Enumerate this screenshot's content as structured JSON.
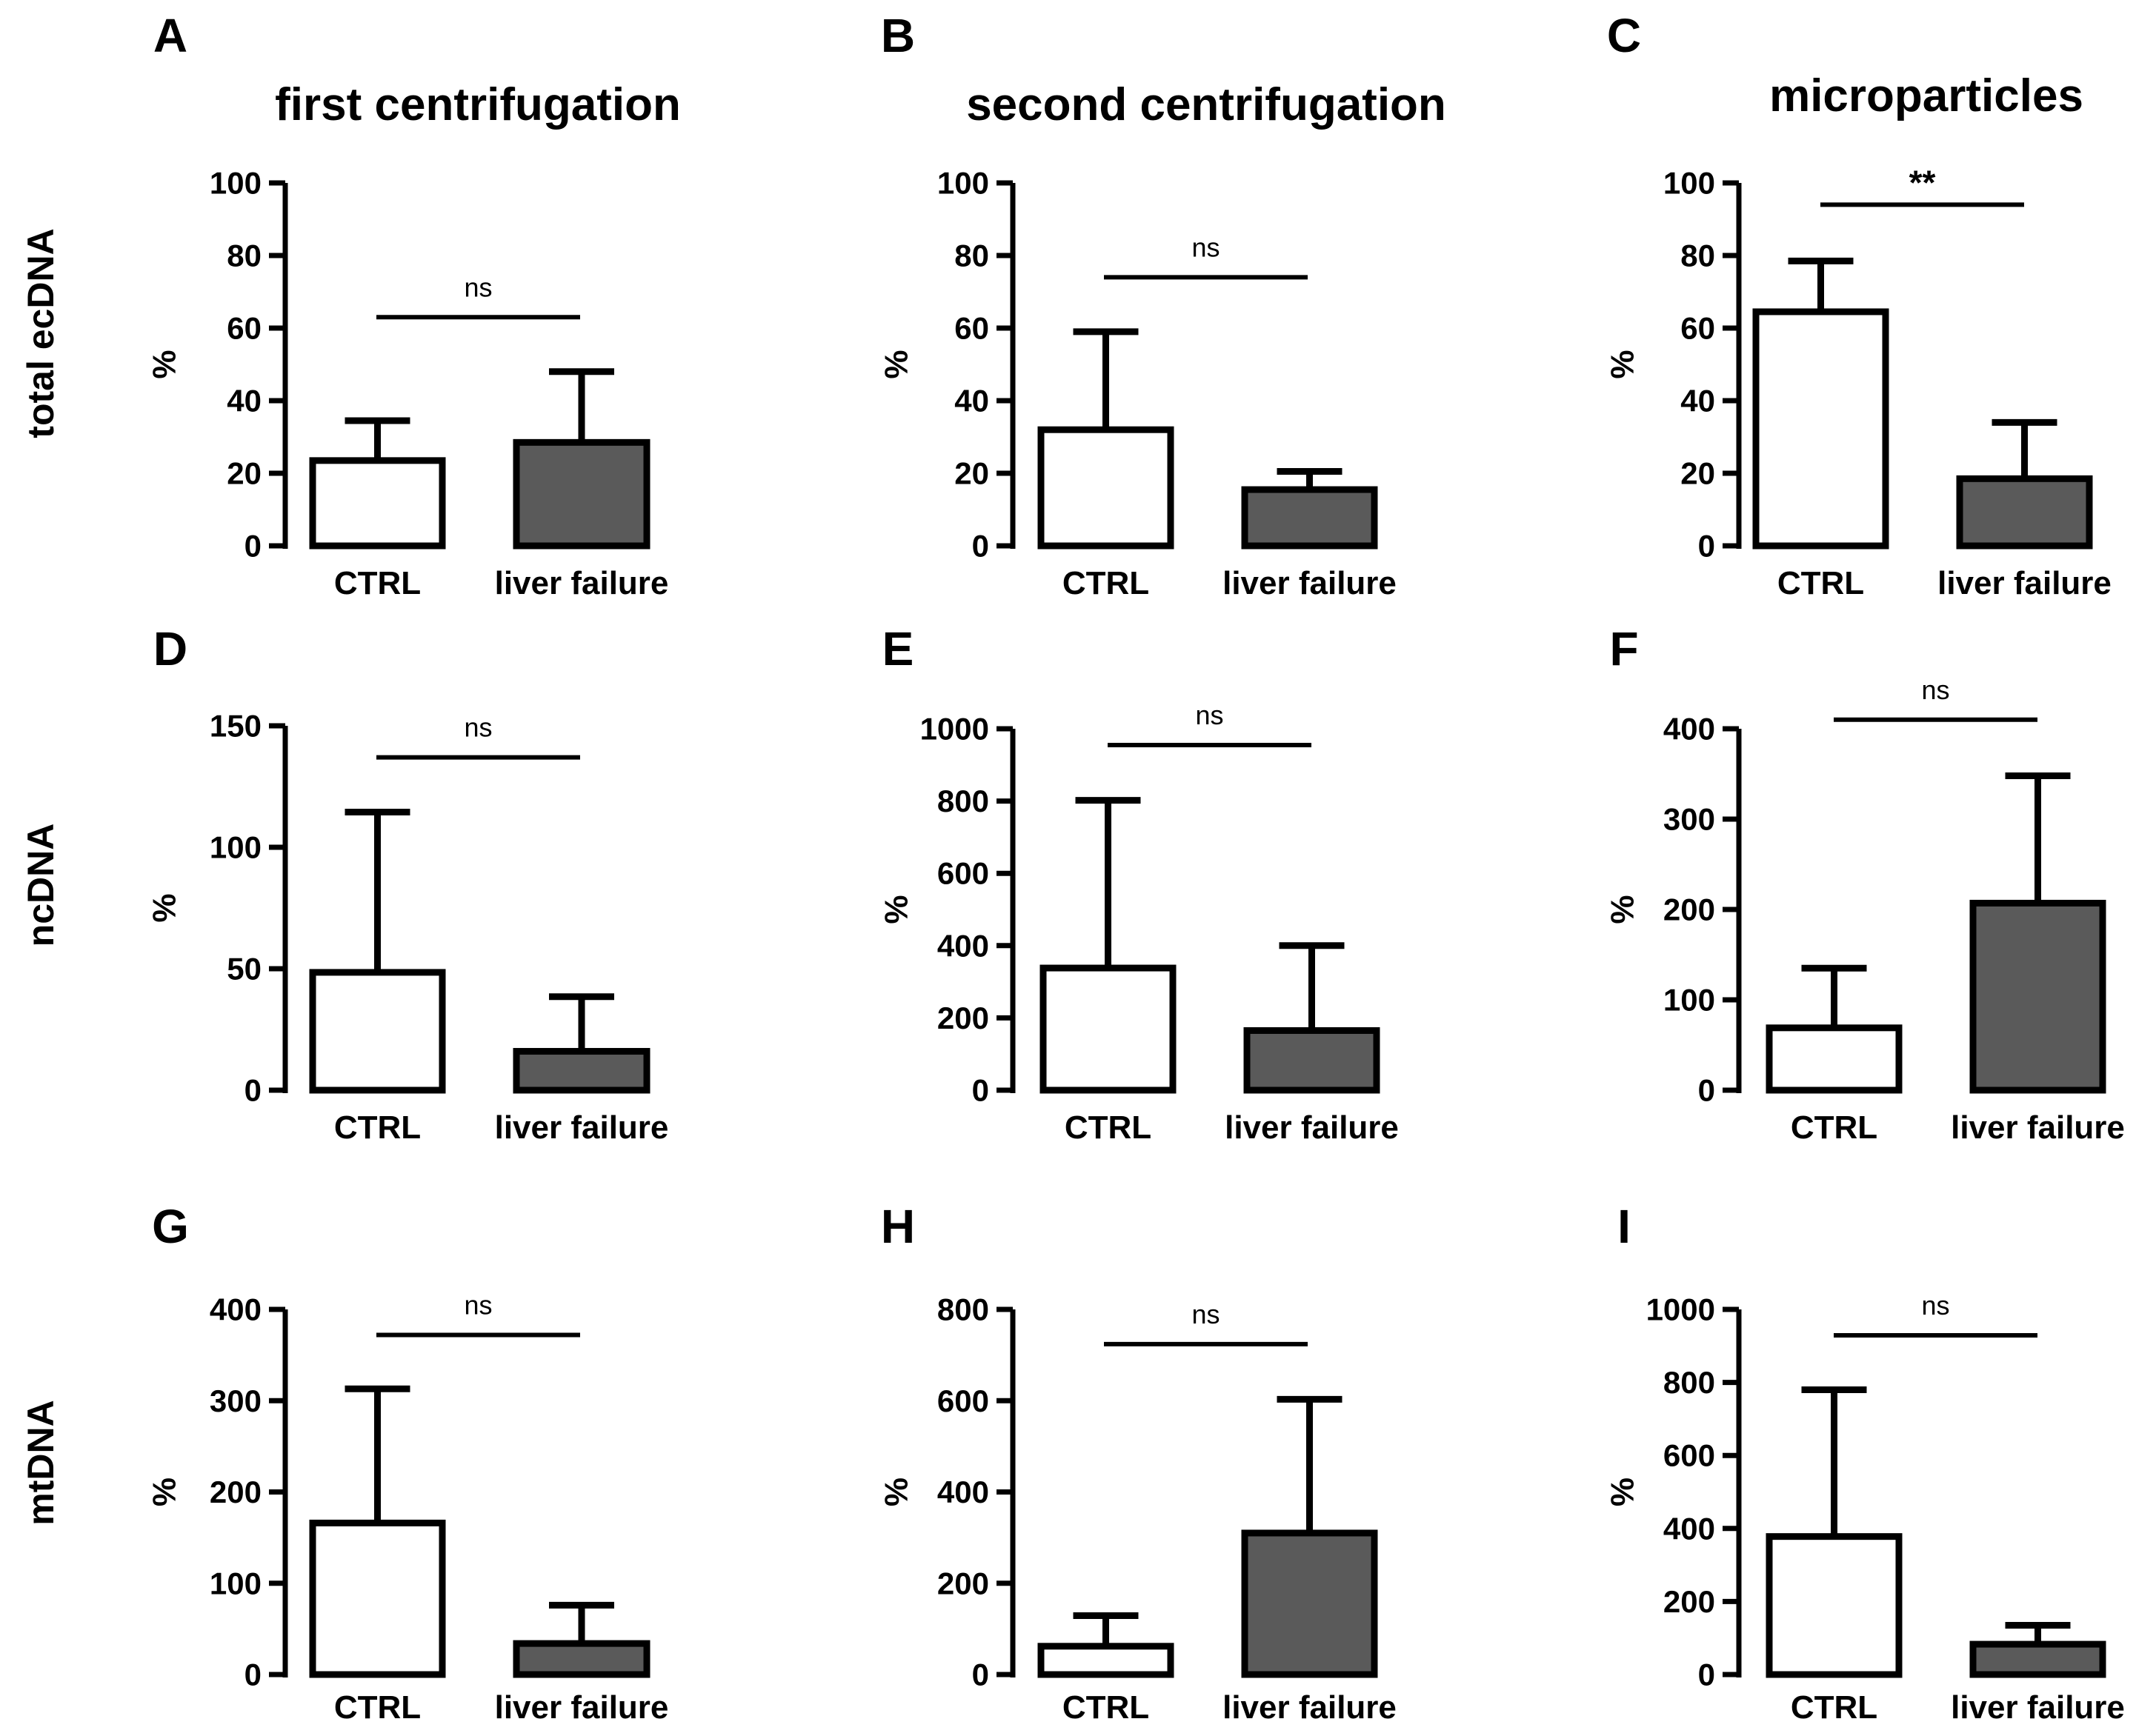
{
  "column_titles": [
    "first centrifugation",
    "second centrifugation",
    "microparticles"
  ],
  "row_titles": [
    "total ecDNA",
    "ncDNA",
    "mtDNA"
  ],
  "colors": {
    "ctrl_fill": "#ffffff",
    "liver_failure_fill": "#5a5a5a",
    "stroke": "#000000"
  },
  "chart_data": [
    {
      "panel": "A",
      "type": "bar",
      "categories": [
        "CTRL",
        "liver failure"
      ],
      "values": [
        23.5,
        28.5
      ],
      "error_upper": [
        34.5,
        48
      ],
      "ylabel": "%",
      "ylim": [
        0,
        100
      ],
      "yticks": [
        0,
        20,
        40,
        60,
        80,
        100
      ],
      "significance": "ns",
      "sig_y": 63
    },
    {
      "panel": "B",
      "type": "bar",
      "categories": [
        "CTRL",
        "liver failure"
      ],
      "values": [
        32,
        15.5
      ],
      "error_upper": [
        59,
        20.5
      ],
      "ylabel": "%",
      "ylim": [
        0,
        100
      ],
      "yticks": [
        0,
        20,
        40,
        60,
        80,
        100
      ],
      "significance": "ns",
      "sig_y": 74
    },
    {
      "panel": "C",
      "type": "bar",
      "categories": [
        "CTRL",
        "liver failure"
      ],
      "values": [
        64.5,
        18.5
      ],
      "error_upper": [
        78.5,
        34
      ],
      "ylabel": "%",
      "ylim": [
        0,
        100
      ],
      "yticks": [
        0,
        20,
        40,
        60,
        80,
        100
      ],
      "significance": "**",
      "sig_y": 94
    },
    {
      "panel": "D",
      "type": "bar",
      "categories": [
        "CTRL",
        "liver failure"
      ],
      "values": [
        48.5,
        16
      ],
      "error_upper": [
        114.5,
        38.5
      ],
      "ylabel": "%",
      "ylim": [
        0,
        150
      ],
      "yticks": [
        0,
        50,
        100,
        150
      ],
      "significance": "ns",
      "sig_y": 137
    },
    {
      "panel": "E",
      "type": "bar",
      "categories": [
        "CTRL",
        "liver failure"
      ],
      "values": [
        338,
        165
      ],
      "error_upper": [
        802,
        400
      ],
      "ylabel": "%",
      "ylim": [
        0,
        1000
      ],
      "yticks": [
        0,
        200,
        400,
        600,
        800,
        1000
      ],
      "significance": "ns",
      "sig_y": 955
    },
    {
      "panel": "F",
      "type": "bar",
      "categories": [
        "CTRL",
        "liver failure"
      ],
      "values": [
        69,
        207
      ],
      "error_upper": [
        135,
        348
      ],
      "ylabel": "%",
      "ylim": [
        0,
        400
      ],
      "yticks": [
        0,
        100,
        200,
        300,
        400
      ],
      "significance": "ns",
      "sig_y": 410
    },
    {
      "panel": "G",
      "type": "bar",
      "categories": [
        "CTRL",
        "liver failure"
      ],
      "values": [
        166,
        34
      ],
      "error_upper": [
        313,
        76
      ],
      "ylabel": "%",
      "ylim": [
        0,
        400
      ],
      "yticks": [
        0,
        100,
        200,
        300,
        400
      ],
      "significance": "ns",
      "sig_y": 372
    },
    {
      "panel": "H",
      "type": "bar",
      "categories": [
        "CTRL",
        "liver failure"
      ],
      "values": [
        62,
        310
      ],
      "error_upper": [
        129,
        603
      ],
      "ylabel": "%",
      "ylim": [
        0,
        800
      ],
      "yticks": [
        0,
        200,
        400,
        600,
        800
      ],
      "significance": "ns",
      "sig_y": 724
    },
    {
      "panel": "I",
      "type": "bar",
      "categories": [
        "CTRL",
        "liver failure"
      ],
      "values": [
        378,
        83
      ],
      "error_upper": [
        780,
        135
      ],
      "ylabel": "%",
      "ylim": [
        0,
        1000
      ],
      "yticks": [
        0,
        200,
        400,
        600,
        800,
        1000
      ],
      "significance": "ns",
      "sig_y": 929
    }
  ]
}
